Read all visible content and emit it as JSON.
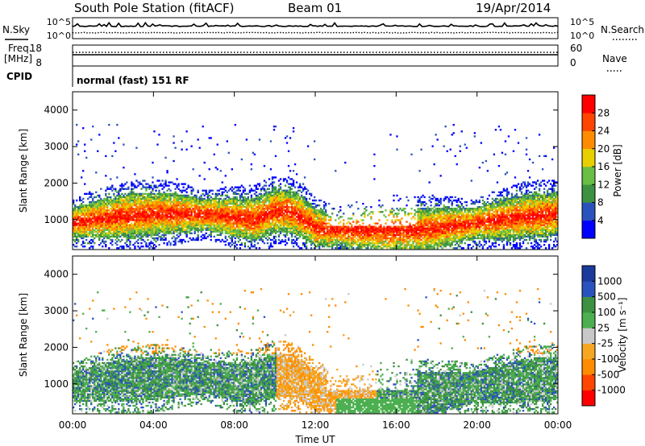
{
  "header": {
    "station": "South Pole Station (fitACF)",
    "beam": "Beam 01",
    "date": "19/Apr/2014"
  },
  "top_panel": {
    "nsky_label": "N.Sky",
    "nsearch_label": "N.Search",
    "freq_label_line1": "Freq.",
    "freq_label_line2": "[MHz]",
    "nave_label": "Nave",
    "cpid_label": "CPID",
    "cpid_value": "normal (fast) 151 RF",
    "noise_ticks_left": [
      "10^5",
      "10^0"
    ],
    "noise_ticks_right": [
      "10^5",
      "10^0"
    ],
    "freq_ticks": [
      "18",
      "8"
    ],
    "nave_ticks": [
      "60",
      "0"
    ]
  },
  "colors": {
    "power_scale": [
      "#0000ff",
      "#2a52be",
      "#3d9140",
      "#6abd45",
      "#e8d000",
      "#ff8c00",
      "#ff4500",
      "#ff0000"
    ],
    "velocity_scale": [
      "#ff0000",
      "#ff4500",
      "#ff8c00",
      "#f5a623",
      "#c8c8c8",
      "#4caf50",
      "#3d9140",
      "#2a52be",
      "#1a3a9c"
    ]
  },
  "chart_data": [
    {
      "type": "heatmap",
      "title": "Power",
      "ylabel": "Slant Range [km]",
      "xlabel": "",
      "ylim": [
        180,
        4500
      ],
      "yticks": [
        "1000",
        "2000",
        "3000",
        "4000"
      ],
      "xticks": [
        "00:00",
        "04:00",
        "08:00",
        "12:00",
        "16:00",
        "20:00",
        "00:00"
      ],
      "colorbar_label": "Power [dB]",
      "colorbar_ticks": [
        "4",
        "8",
        "12",
        "16",
        "20",
        "24",
        "28"
      ],
      "grid": false
    },
    {
      "type": "heatmap",
      "title": "Velocity",
      "ylabel": "Slant Range [km]",
      "xlabel": "Time UT",
      "ylim": [
        180,
        4500
      ],
      "yticks": [
        "1000",
        "2000",
        "3000",
        "4000"
      ],
      "xticks": [
        "00:00",
        "04:00",
        "08:00",
        "12:00",
        "16:00",
        "20:00",
        "00:00"
      ],
      "colorbar_label": "Velocity [m s⁻¹]",
      "colorbar_ticks": [
        "1000",
        "500",
        "100",
        "25",
        "-25",
        "-100",
        "-500",
        "-1000"
      ],
      "grid": false
    }
  ]
}
